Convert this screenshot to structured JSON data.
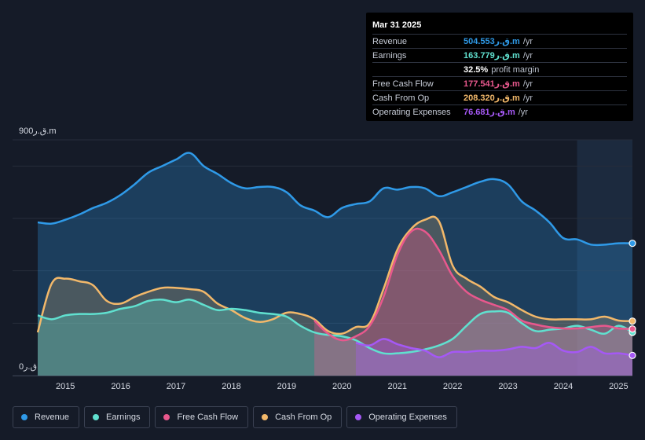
{
  "tooltip": {
    "date": "Mar 31 2025",
    "rows": [
      {
        "label": "Revenue",
        "value": "504.553ق.ر.m",
        "unit": "/yr",
        "color": "#2f9ae8"
      },
      {
        "label": "Earnings",
        "value": "163.779ق.ر.m",
        "unit": "/yr",
        "color": "#60e0cf"
      },
      {
        "label": "",
        "value": "32.5%",
        "unit": "profit margin",
        "color": "#ffffff"
      },
      {
        "label": "Free Cash Flow",
        "value": "177.541ق.ر.m",
        "unit": "/yr",
        "color": "#e8588d"
      },
      {
        "label": "Cash From Op",
        "value": "208.320ق.ر.m",
        "unit": "/yr",
        "color": "#f2b86a"
      },
      {
        "label": "Operating Expenses",
        "value": "76.681ق.ر.m",
        "unit": "/yr",
        "color": "#a558f5"
      }
    ]
  },
  "legend": [
    {
      "label": "Revenue",
      "color": "#2f9ae8"
    },
    {
      "label": "Earnings",
      "color": "#60e0cf"
    },
    {
      "label": "Free Cash Flow",
      "color": "#e8588d"
    },
    {
      "label": "Cash From Op",
      "color": "#f2b86a"
    },
    {
      "label": "Operating Expenses",
      "color": "#a558f5"
    }
  ],
  "chart_data": {
    "type": "area",
    "y_top_label": "900ق.ر.m",
    "y_bottom_label": "0ق.ر",
    "ylim": [
      0,
      900
    ],
    "xlim": [
      2014.5,
      2025.25
    ],
    "x_ticks": [
      "2015",
      "2016",
      "2017",
      "2018",
      "2019",
      "2020",
      "2021",
      "2022",
      "2023",
      "2024",
      "2025"
    ],
    "x_tick_values": [
      2015,
      2016,
      2017,
      2018,
      2019,
      2020,
      2021,
      2022,
      2023,
      2024,
      2025
    ],
    "series": [
      {
        "name": "Revenue",
        "color": "#2f9ae8",
        "x": [
          2014.5,
          2014.75,
          2015,
          2015.25,
          2015.5,
          2015.75,
          2016,
          2016.25,
          2016.5,
          2016.75,
          2017,
          2017.25,
          2017.5,
          2017.75,
          2018,
          2018.25,
          2018.5,
          2018.75,
          2019,
          2019.25,
          2019.5,
          2019.75,
          2020,
          2020.25,
          2020.5,
          2020.75,
          2021,
          2021.25,
          2021.5,
          2021.75,
          2022,
          2022.25,
          2022.5,
          2022.75,
          2023,
          2023.25,
          2023.5,
          2023.75,
          2024,
          2024.25,
          2024.5,
          2024.75,
          2025,
          2025.25
        ],
        "values": [
          585,
          580,
          595,
          615,
          640,
          660,
          690,
          730,
          775,
          800,
          825,
          850,
          800,
          770,
          735,
          715,
          720,
          720,
          700,
          650,
          630,
          605,
          640,
          655,
          665,
          715,
          710,
          720,
          715,
          685,
          700,
          720,
          740,
          750,
          730,
          665,
          630,
          585,
          525,
          520,
          500,
          500,
          505,
          505
        ]
      },
      {
        "name": "Earnings",
        "color": "#60e0cf",
        "x": [
          2014.5,
          2014.75,
          2015,
          2015.25,
          2015.5,
          2015.75,
          2016,
          2016.25,
          2016.5,
          2016.75,
          2017,
          2017.25,
          2017.5,
          2017.75,
          2018,
          2018.25,
          2018.5,
          2018.75,
          2019,
          2019.25,
          2019.5,
          2019.75,
          2020,
          2020.25,
          2020.5,
          2020.75,
          2021,
          2021.25,
          2021.5,
          2021.75,
          2022,
          2022.25,
          2022.5,
          2022.75,
          2023,
          2023.25,
          2023.5,
          2023.75,
          2024,
          2024.25,
          2024.5,
          2024.75,
          2025,
          2025.25
        ],
        "values": [
          230,
          215,
          230,
          235,
          235,
          240,
          255,
          265,
          285,
          290,
          280,
          290,
          270,
          250,
          255,
          250,
          240,
          235,
          225,
          190,
          165,
          155,
          150,
          135,
          105,
          85,
          85,
          90,
          100,
          115,
          140,
          190,
          235,
          245,
          240,
          200,
          170,
          175,
          180,
          190,
          175,
          160,
          190,
          165
        ]
      },
      {
        "name": "Free Cash Flow",
        "color": "#e8588d",
        "x": [
          2019.5,
          2019.75,
          2020,
          2020.25,
          2020.5,
          2020.75,
          2021,
          2021.25,
          2021.5,
          2021.75,
          2022,
          2022.25,
          2022.5,
          2022.75,
          2023,
          2023.25,
          2023.5,
          2023.75,
          2024,
          2024.25,
          2024.5,
          2024.75,
          2025,
          2025.25
        ],
        "values": [
          210,
          160,
          135,
          150,
          190,
          300,
          460,
          550,
          550,
          480,
          380,
          320,
          290,
          270,
          250,
          210,
          195,
          185,
          180,
          180,
          185,
          190,
          180,
          178
        ]
      },
      {
        "name": "Cash From Op",
        "color": "#f2b86a",
        "x": [
          2014.5,
          2014.75,
          2015,
          2015.25,
          2015.5,
          2015.75,
          2016,
          2016.25,
          2016.5,
          2016.75,
          2017,
          2017.25,
          2017.5,
          2017.75,
          2018,
          2018.25,
          2018.5,
          2018.75,
          2019,
          2019.25,
          2019.5,
          2019.75,
          2020,
          2020.25,
          2020.5,
          2020.75,
          2021,
          2021.25,
          2021.5,
          2021.75,
          2022,
          2022.25,
          2022.5,
          2022.75,
          2023,
          2023.25,
          2023.5,
          2023.75,
          2024,
          2024.25,
          2024.5,
          2024.75,
          2025,
          2025.25
        ],
        "values": [
          165,
          350,
          370,
          360,
          345,
          285,
          275,
          300,
          320,
          335,
          335,
          330,
          320,
          275,
          250,
          220,
          205,
          215,
          240,
          235,
          215,
          170,
          160,
          185,
          200,
          330,
          480,
          560,
          595,
          590,
          420,
          370,
          340,
          300,
          280,
          250,
          225,
          215,
          215,
          215,
          215,
          225,
          210,
          208
        ]
      },
      {
        "name": "Operating Expenses",
        "color": "#a558f5",
        "x": [
          2020.25,
          2020.5,
          2020.75,
          2021,
          2021.25,
          2021.5,
          2021.75,
          2022,
          2022.25,
          2022.5,
          2022.75,
          2023,
          2023.25,
          2023.5,
          2023.75,
          2024,
          2024.25,
          2024.5,
          2024.75,
          2025,
          2025.25
        ],
        "values": [
          125,
          115,
          140,
          120,
          105,
          95,
          70,
          90,
          90,
          95,
          95,
          100,
          110,
          105,
          125,
          95,
          90,
          110,
          85,
          85,
          77
        ]
      }
    ]
  }
}
